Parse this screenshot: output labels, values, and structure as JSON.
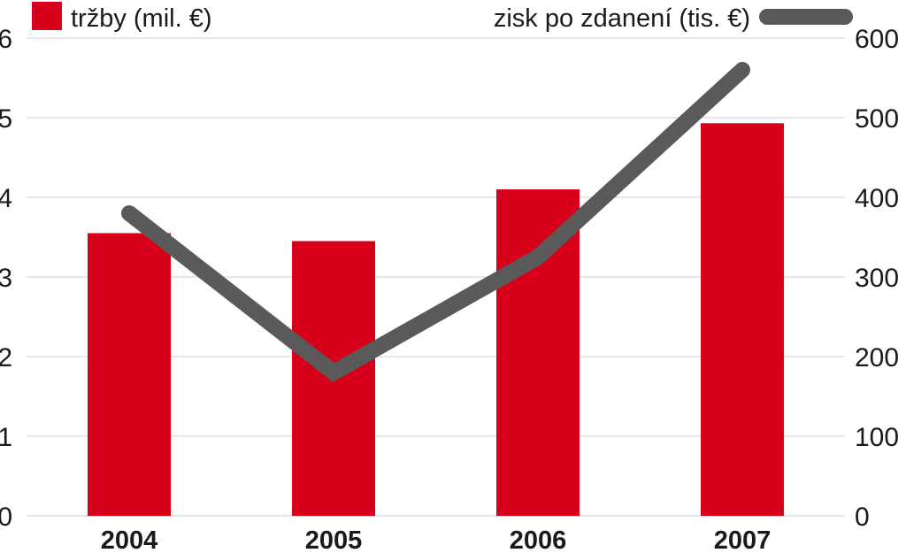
{
  "chart_data": {
    "type": "bar",
    "categories": [
      "2004",
      "2005",
      "2006",
      "2007"
    ],
    "series": [
      {
        "name": "tržby (mil. €)",
        "kind": "bar",
        "axis": "left",
        "color": "#d7001b",
        "values": [
          3.55,
          3.45,
          4.1,
          4.93
        ]
      },
      {
        "name": "zisk po zdanení (tis. €)",
        "kind": "line",
        "axis": "right",
        "color": "#5a5a5a",
        "values": [
          380,
          180,
          325,
          560
        ]
      }
    ],
    "y_left": {
      "min": 0,
      "max": 6,
      "ticks": [
        "0",
        "1",
        "2",
        "3",
        "4",
        "5",
        "6"
      ]
    },
    "y_right": {
      "min": 0,
      "max": 600,
      "ticks": [
        "0",
        "100",
        "200",
        "300",
        "400",
        "500",
        "600"
      ]
    },
    "grid": true,
    "legend": {
      "placement": "top"
    }
  }
}
